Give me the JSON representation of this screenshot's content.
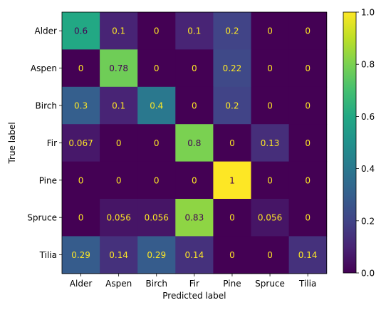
{
  "chart_data": {
    "type": "heatmap",
    "title": "",
    "xlabel": "Predicted label",
    "ylabel": "True label",
    "x_categories": [
      "Alder",
      "Aspen",
      "Birch",
      "Fir",
      "Pine",
      "Spruce",
      "Tilia"
    ],
    "y_categories": [
      "Alder",
      "Aspen",
      "Birch",
      "Fir",
      "Pine",
      "Spruce",
      "Tilia"
    ],
    "values": [
      [
        0.6,
        0.1,
        0,
        0.1,
        0.2,
        0,
        0
      ],
      [
        0,
        0.78,
        0,
        0,
        0.22,
        0,
        0
      ],
      [
        0.3,
        0.1,
        0.4,
        0,
        0.2,
        0,
        0
      ],
      [
        0.067,
        0,
        0,
        0.8,
        0,
        0.13,
        0
      ],
      [
        0,
        0,
        0,
        0,
        1,
        0,
        0
      ],
      [
        0,
        0.056,
        0.056,
        0.83,
        0,
        0.056,
        0
      ],
      [
        0.29,
        0.14,
        0.29,
        0.14,
        0,
        0,
        0.14
      ]
    ],
    "cell_labels": [
      [
        "0.6",
        "0.1",
        "0",
        "0.1",
        "0.2",
        "0",
        "0"
      ],
      [
        "0",
        "0.78",
        "0",
        "0",
        "0.22",
        "0",
        "0"
      ],
      [
        "0.3",
        "0.1",
        "0.4",
        "0",
        "0.2",
        "0",
        "0"
      ],
      [
        "0.067",
        "0",
        "0",
        "0.8",
        "0",
        "0.13",
        "0"
      ],
      [
        "0",
        "0",
        "0",
        "0",
        "1",
        "0",
        "0"
      ],
      [
        "0",
        "0.056",
        "0.056",
        "0.83",
        "0",
        "0.056",
        "0"
      ],
      [
        "0.29",
        "0.14",
        "0.29",
        "0.14",
        "0",
        "0",
        "0.14"
      ]
    ],
    "colormap": "viridis",
    "colorbar": {
      "range": [
        0.0,
        1.0
      ],
      "ticks": [
        "0.0",
        "0.2",
        "0.4",
        "0.6",
        "0.8",
        "1.0"
      ]
    },
    "text_colors": {
      "on_dark": "#fde725",
      "on_light": "#440154"
    },
    "grid": false
  }
}
